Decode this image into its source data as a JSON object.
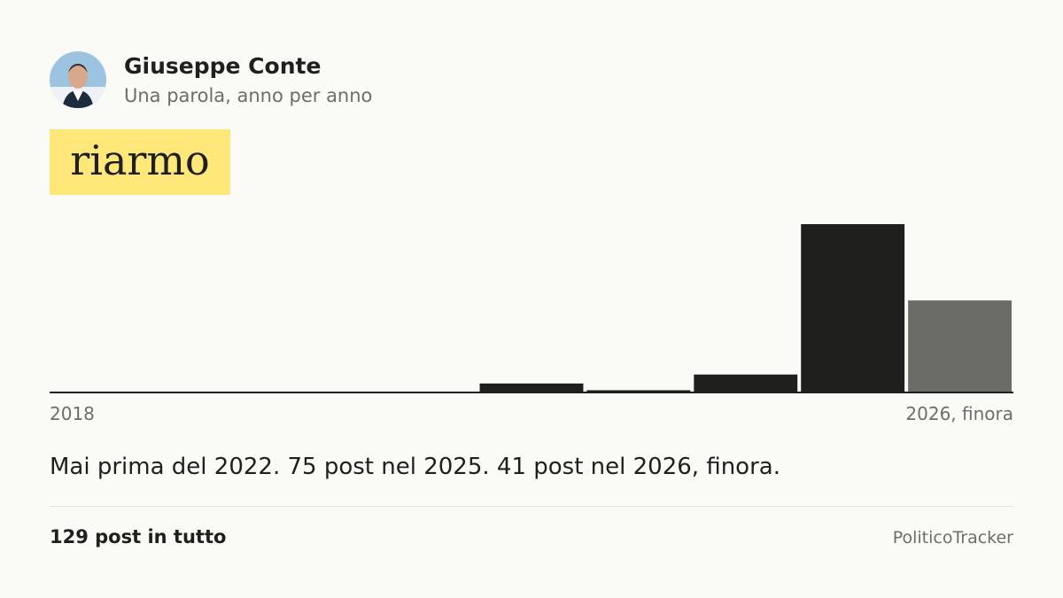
{
  "header": {
    "name": "Giuseppe Conte",
    "subtitle": "Una parola, anno per anno"
  },
  "word": "riarmo",
  "chart_data": {
    "type": "bar",
    "categories": [
      "2018",
      null,
      null,
      null,
      null,
      null,
      null,
      null,
      "2026, finora"
    ],
    "values": [
      0,
      0,
      0,
      0,
      4,
      1,
      8,
      75,
      41
    ],
    "colors": [
      "#1f1f1d",
      "#1f1f1d",
      "#1f1f1d",
      "#1f1f1d",
      "#1f1f1d",
      "#1f1f1d",
      "#1f1f1d",
      "#1f1f1d",
      "#6c6c66"
    ]
  },
  "summary": "Mai prima del 2022. 75 post nel 2025. 41 post nel 2026, finora.",
  "footer": {
    "total": "129 post in tutto",
    "brand": "PoliticoTracker"
  }
}
